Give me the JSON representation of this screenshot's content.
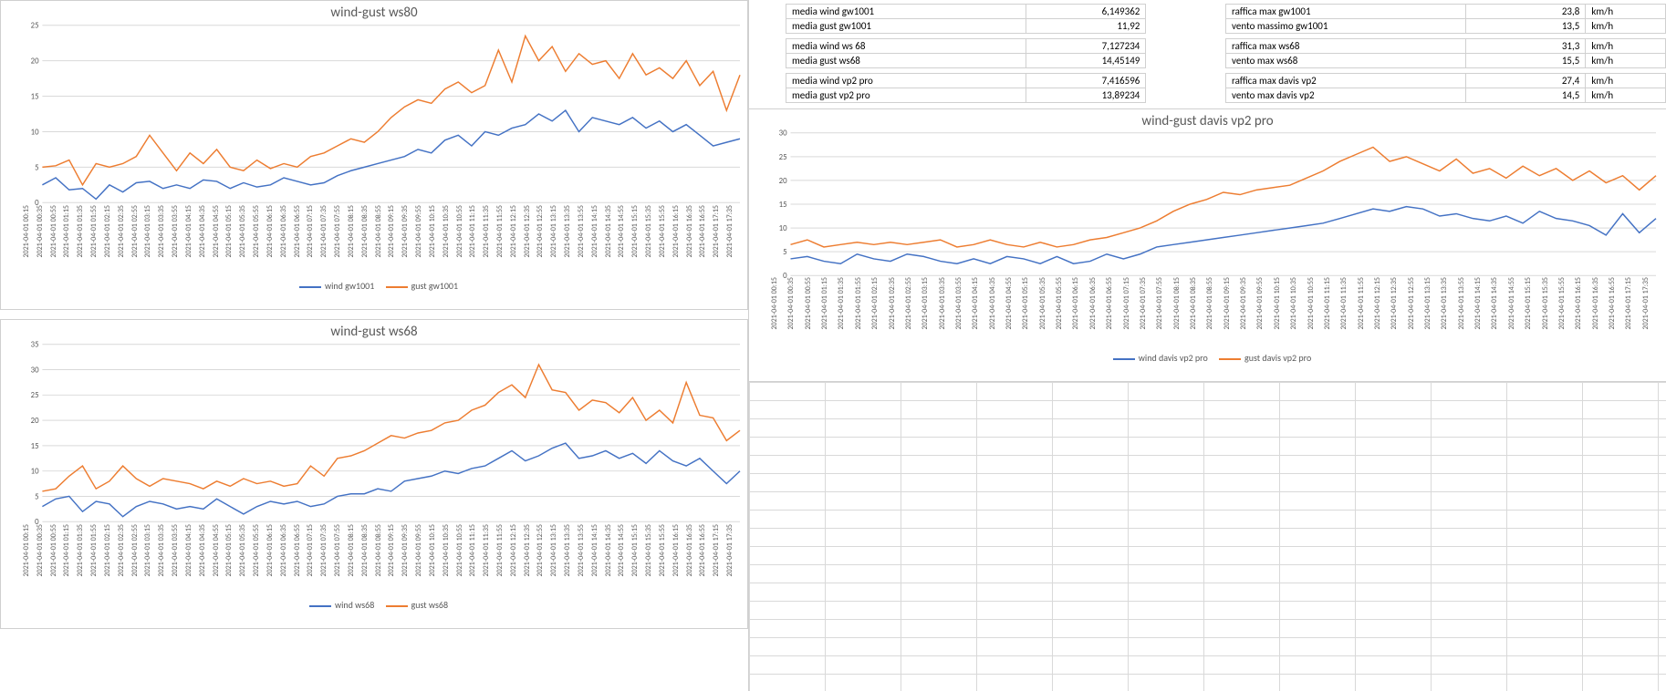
{
  "x_labels": [
    "2021-04-01 00:15",
    "2021-04-01 00:35",
    "2021-04-01 00:55",
    "2021-04-01 01:15",
    "2021-04-01 01:35",
    "2021-04-01 01:55",
    "2021-04-01 02:15",
    "2021-04-01 02:35",
    "2021-04-01 02:55",
    "2021-04-01 03:15",
    "2021-04-01 03:35",
    "2021-04-01 03:55",
    "2021-04-01 04:15",
    "2021-04-01 04:35",
    "2021-04-01 04:55",
    "2021-04-01 05:15",
    "2021-04-01 05:35",
    "2021-04-01 05:55",
    "2021-04-01 06:15",
    "2021-04-01 06:35",
    "2021-04-01 06:55",
    "2021-04-01 07:15",
    "2021-04-01 07:35",
    "2021-04-01 07:55",
    "2021-04-01 08:15",
    "2021-04-01 08:35",
    "2021-04-01 08:55",
    "2021-04-01 09:15",
    "2021-04-01 09:35",
    "2021-04-01 09:55",
    "2021-04-01 10:15",
    "2021-04-01 10:35",
    "2021-04-01 10:55",
    "2021-04-01 11:15",
    "2021-04-01 11:35",
    "2021-04-01 11:55",
    "2021-04-01 12:15",
    "2021-04-01 12:35",
    "2021-04-01 12:55",
    "2021-04-01 13:15",
    "2021-04-01 13:35",
    "2021-04-01 13:55",
    "2021-04-01 14:15",
    "2021-04-01 14:35",
    "2021-04-01 14:55",
    "2021-04-01 15:15",
    "2021-04-01 15:35",
    "2021-04-01 15:55",
    "2021-04-01 16:15",
    "2021-04-01 16:35",
    "2021-04-01 16:55",
    "2021-04-01 17:15",
    "2021-04-01 17:35"
  ],
  "colors": {
    "wind": "#4472c4",
    "gust": "#ed7d31",
    "axis": "#d9d9d9",
    "text": "#595959"
  },
  "chart_ws80": {
    "title": "wind-gust ws80",
    "ylim": [
      0,
      25
    ],
    "ytick_step": 5,
    "legend": {
      "a": "wind gw1001",
      "b": "gust gw1001"
    },
    "wind": [
      2.5,
      3.5,
      1.8,
      2.0,
      0.5,
      2.5,
      1.5,
      2.8,
      3.0,
      2.0,
      2.5,
      2.0,
      3.2,
      3.0,
      2.0,
      2.8,
      2.2,
      2.5,
      3.5,
      3.0,
      2.5,
      2.8,
      3.8,
      4.5,
      5.0,
      5.5,
      6.0,
      6.5,
      7.5,
      7.0,
      8.8,
      9.5,
      8.0,
      10.0,
      9.5,
      10.5,
      11.0,
      12.5,
      11.5,
      13.0,
      10.0,
      12.0,
      11.5,
      11.0,
      12.0,
      10.5,
      11.5,
      10.0,
      11.0,
      9.5,
      8.0,
      8.5,
      9.0
    ],
    "gust": [
      5.0,
      5.2,
      6.0,
      2.5,
      5.5,
      5.0,
      5.5,
      6.5,
      9.5,
      7.0,
      4.5,
      7.0,
      5.5,
      7.5,
      5.0,
      4.5,
      6.0,
      4.8,
      5.5,
      5.0,
      6.5,
      7.0,
      8.0,
      9.0,
      8.5,
      10.0,
      12.0,
      13.5,
      14.5,
      14.0,
      16.0,
      17.0,
      15.5,
      16.5,
      21.5,
      17.0,
      23.5,
      20.0,
      22.0,
      18.5,
      21.0,
      19.5,
      20.0,
      17.5,
      21.0,
      18.0,
      19.0,
      17.5,
      20.0,
      16.5,
      18.5,
      13.0,
      18.0
    ]
  },
  "chart_ws68": {
    "title": "wind-gust ws68",
    "ylim": [
      0,
      35
    ],
    "ytick_step": 5,
    "legend": {
      "a": "wind ws68",
      "b": "gust ws68"
    },
    "wind": [
      3.0,
      4.5,
      5.0,
      2.0,
      4.0,
      3.5,
      1.0,
      3.0,
      4.0,
      3.5,
      2.5,
      3.0,
      2.5,
      4.5,
      3.0,
      1.5,
      3.0,
      4.0,
      3.5,
      4.0,
      3.0,
      3.5,
      5.0,
      5.5,
      5.5,
      6.5,
      6.0,
      8.0,
      8.5,
      9.0,
      10.0,
      9.5,
      10.5,
      11.0,
      12.5,
      14.0,
      12.0,
      13.0,
      14.5,
      15.5,
      12.5,
      13.0,
      14.0,
      12.5,
      13.5,
      11.5,
      14.0,
      12.0,
      11.0,
      12.5,
      10.0,
      7.5,
      10.0
    ],
    "gust": [
      6.0,
      6.5,
      9.0,
      11.0,
      6.5,
      8.0,
      11.0,
      8.5,
      7.0,
      8.5,
      8.0,
      7.5,
      6.5,
      8.0,
      7.0,
      8.5,
      7.5,
      8.0,
      7.0,
      7.5,
      11.0,
      9.0,
      12.5,
      13.0,
      14.0,
      15.5,
      17.0,
      16.5,
      17.5,
      18.0,
      19.5,
      20.0,
      22.0,
      23.0,
      25.5,
      27.0,
      24.5,
      31.0,
      26.0,
      25.5,
      22.0,
      24.0,
      23.5,
      21.5,
      24.5,
      20.0,
      22.0,
      19.5,
      27.5,
      21.0,
      20.5,
      16.0,
      18.0
    ]
  },
  "chart_vp2": {
    "title": "wind-gust davis vp2 pro",
    "ylim": [
      0,
      30
    ],
    "ytick_step": 5,
    "legend": {
      "a": "wind davis vp2 pro",
      "b": "gust davis vp2 pro"
    },
    "wind": [
      3.5,
      4.0,
      3.0,
      2.5,
      4.5,
      3.5,
      3.0,
      4.5,
      4.0,
      3.0,
      2.5,
      3.5,
      2.5,
      4.0,
      3.5,
      2.5,
      4.0,
      2.5,
      3.0,
      4.5,
      3.5,
      4.5,
      6.0,
      6.5,
      7.0,
      7.5,
      8.0,
      8.5,
      9.0,
      9.5,
      10.0,
      10.5,
      11.0,
      12.0,
      13.0,
      14.0,
      13.5,
      14.5,
      14.0,
      12.5,
      13.0,
      12.0,
      11.5,
      12.5,
      11.0,
      13.5,
      12.0,
      11.5,
      10.5,
      8.5,
      13.0,
      9.0,
      12.0
    ],
    "gust": [
      6.5,
      7.5,
      6.0,
      6.5,
      7.0,
      6.5,
      7.0,
      6.5,
      7.0,
      7.5,
      6.0,
      6.5,
      7.5,
      6.5,
      6.0,
      7.0,
      6.0,
      6.5,
      7.5,
      8.0,
      9.0,
      10.0,
      11.5,
      13.5,
      15.0,
      16.0,
      17.5,
      17.0,
      18.0,
      18.5,
      19.0,
      20.5,
      22.0,
      24.0,
      25.5,
      27.0,
      24.0,
      25.0,
      23.5,
      22.0,
      24.5,
      21.5,
      22.5,
      20.5,
      23.0,
      21.0,
      22.5,
      20.0,
      22.0,
      19.5,
      21.0,
      18.0,
      21.0
    ]
  },
  "stats": {
    "r1": {
      "l1": "media wind gw1001",
      "v1": "6,149362",
      "l2": "raffica max gw1001",
      "v2": "23,8",
      "u": "km/h"
    },
    "r2": {
      "l1": "media gust gw1001",
      "v1": "11,92",
      "l2": "vento massimo gw1001",
      "v2": "13,5",
      "u": "km/h"
    },
    "r3": {
      "l1": "media wind ws 68",
      "v1": "7,127234",
      "l2": "raffica max ws68",
      "v2": "31,3",
      "u": "km/h"
    },
    "r4": {
      "l1": "media gust ws68",
      "v1": "14,45149",
      "l2": "vento max ws68",
      "v2": "15,5",
      "u": "km/h"
    },
    "r5": {
      "l1": "media wind vp2 pro",
      "v1": "7,416596",
      "l2": "raffica max davis vp2",
      "v2": "27,4",
      "u": "km/h"
    },
    "r6": {
      "l1": "media gust vp2 pro",
      "v1": "13,89234",
      "l2": "vento max davis vp2",
      "v2": "14,5",
      "u": "km/h"
    }
  }
}
